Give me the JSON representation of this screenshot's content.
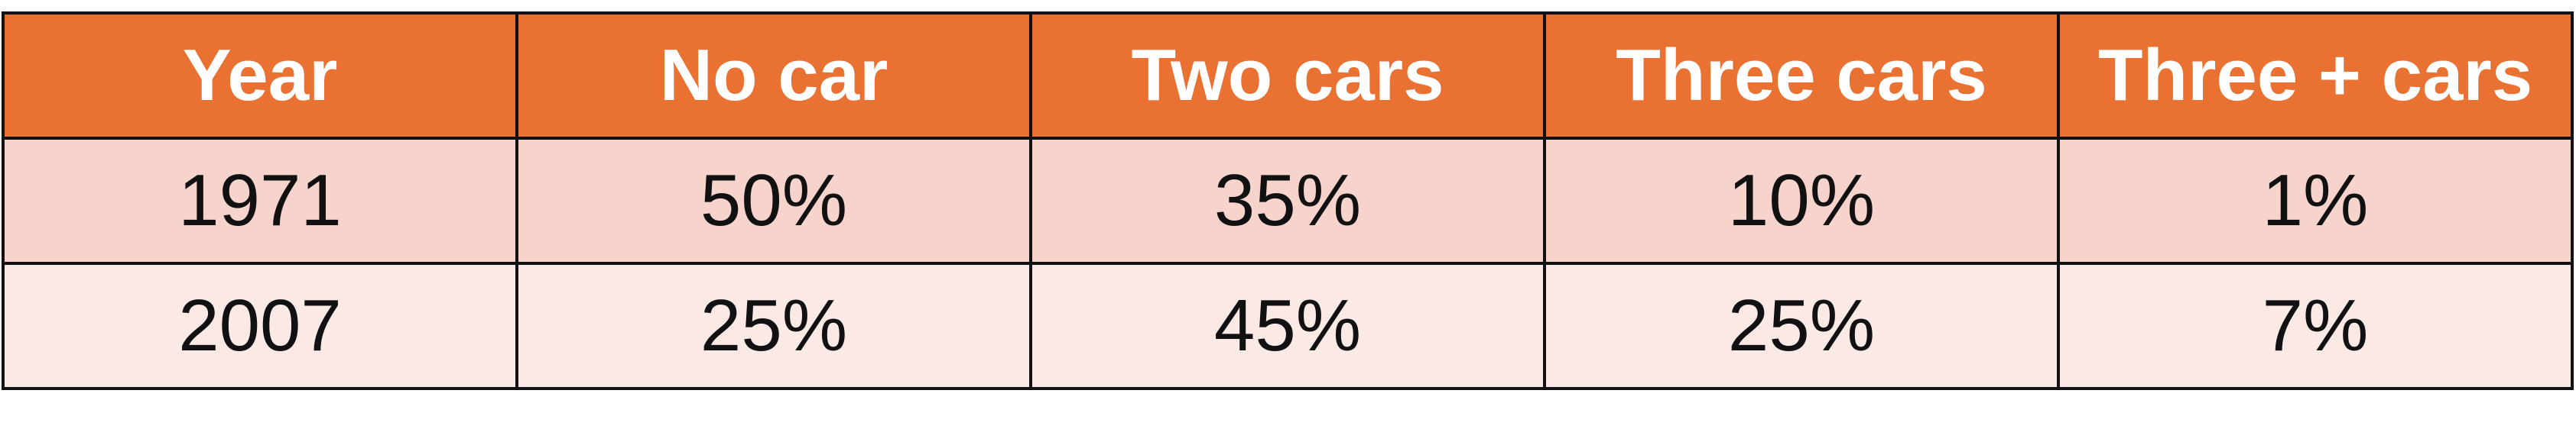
{
  "colors": {
    "header_bg": "#E97132",
    "header_text": "#FFFFFF",
    "row_odd_bg": "#F6D3CB",
    "row_even_bg": "#FBE9E6",
    "border": "#111111"
  },
  "chart_data": {
    "type": "table",
    "columns": [
      "Year",
      "No car",
      "Two cars",
      "Three cars",
      "Three + cars"
    ],
    "rows": [
      [
        "1971",
        "50%",
        "35%",
        "10%",
        "1%"
      ],
      [
        "2007",
        "25%",
        "45%",
        "25%",
        "7%"
      ]
    ]
  }
}
